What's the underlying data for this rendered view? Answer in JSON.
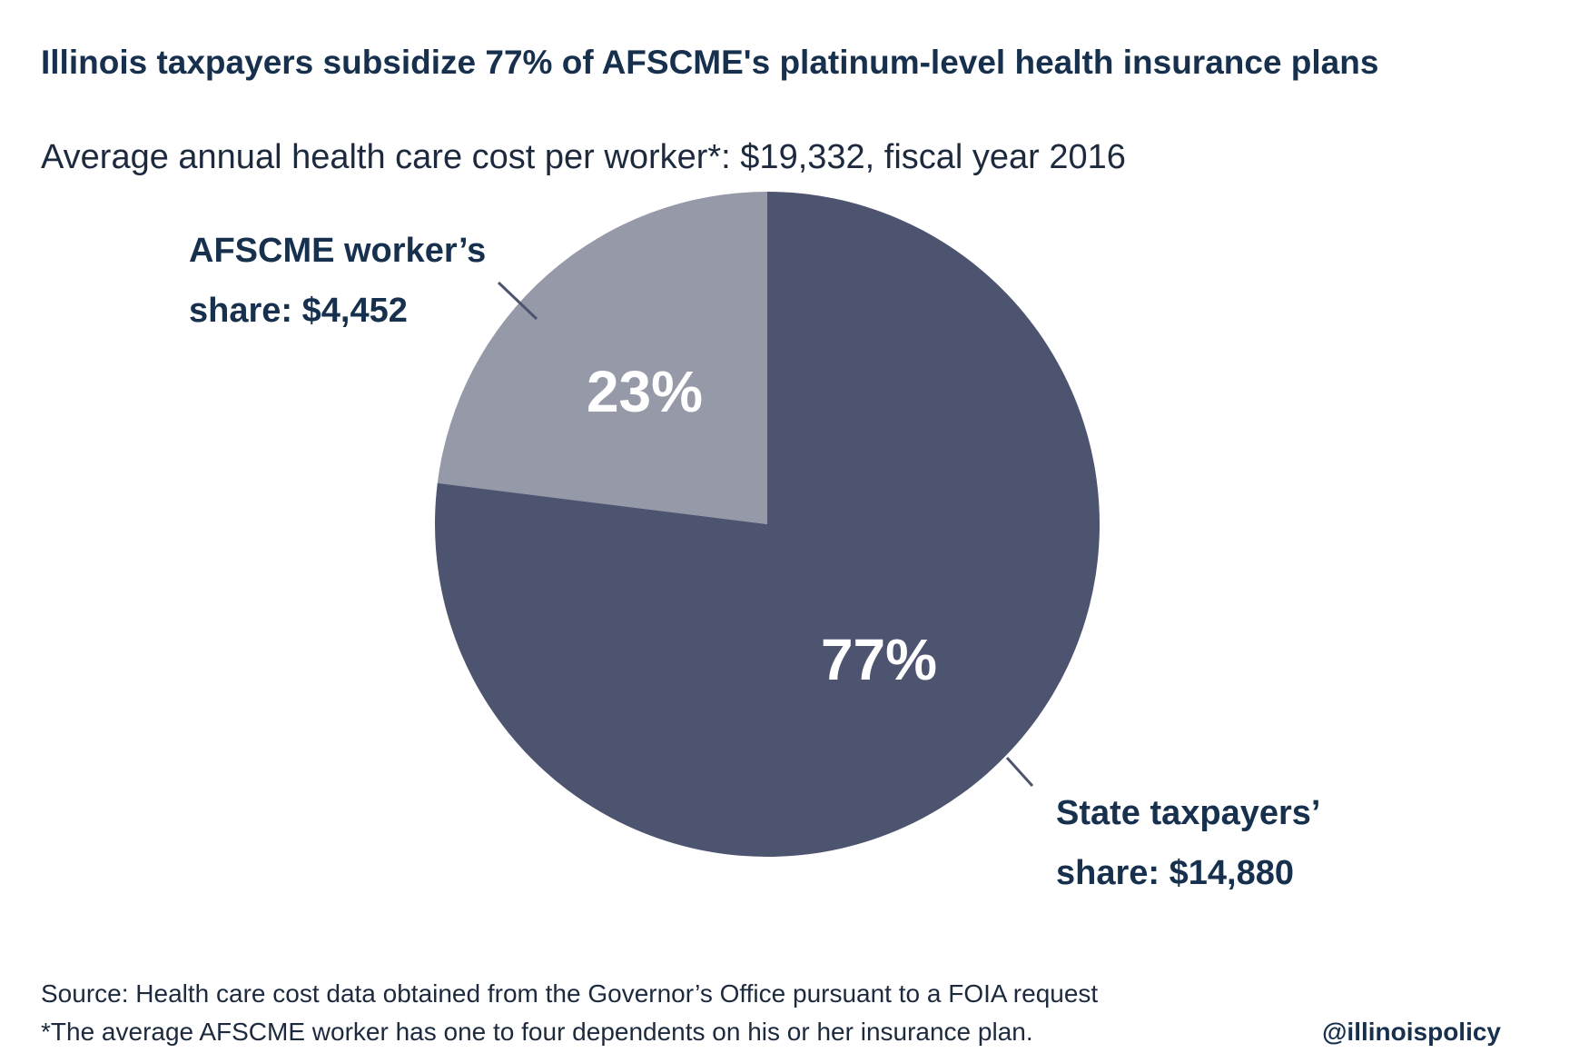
{
  "chart_data": {
    "type": "pie",
    "title": "Illinois taxpayers subsidize 77% of AFSCME's platinum-level health insurance plans",
    "subtitle": "Average annual health care cost per worker*: $19,332, fiscal year 2016",
    "slices": [
      {
        "name": "AFSCME worker's share",
        "value": 4452,
        "percent": 23,
        "percent_label": "23%",
        "label_line1": "AFSCME worker’s",
        "label_line2": "share: $4,452",
        "color": "#9699a8"
      },
      {
        "name": "State taxpayers' share",
        "value": 14880,
        "percent": 77,
        "percent_label": "77%",
        "label_line1": "State taxpayers’",
        "label_line2": "share: $14,880",
        "color": "#4d546f"
      }
    ]
  },
  "footer": {
    "source": "Source: Health care cost data obtained from the Governor’s Office pursuant to a FOIA request",
    "note": "*The average AFSCME worker has one to four dependents on his or her insurance plan.",
    "handle": "@illinoispolicy"
  }
}
